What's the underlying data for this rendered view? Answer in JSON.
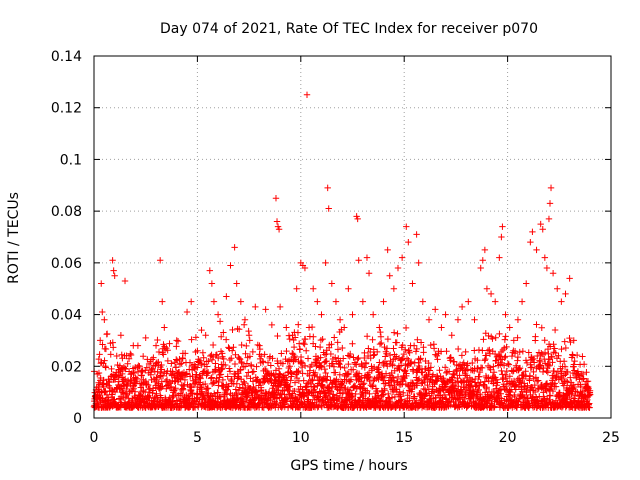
{
  "chart_data": {
    "type": "scatter",
    "title": "Day 074 of 2021, Rate Of TEC Index for receiver p070",
    "xlabel": "GPS time / hours",
    "ylabel": "ROTI / TECUs",
    "xlim": [
      0,
      25
    ],
    "ylim": [
      0,
      0.14
    ],
    "xticks": [
      0,
      5,
      10,
      15,
      20,
      25
    ],
    "xtick_labels": [
      "0",
      "5",
      "10",
      "15",
      "20",
      "25"
    ],
    "yticks": [
      0,
      0.02,
      0.04,
      0.06,
      0.08,
      0.1,
      0.12,
      0.14
    ],
    "ytick_labels": [
      "0",
      "0.02",
      "0.04",
      "0.06",
      "0.08",
      "0.1",
      "0.12",
      "0.14"
    ],
    "grid": true,
    "marker": "+",
    "color": "#ff0000",
    "series": [
      {
        "name": "ROTI",
        "points": [
          [
            0.1,
            0.008
          ],
          [
            0.2,
            0.012
          ],
          [
            0.3,
            0.03
          ],
          [
            0.35,
            0.052
          ],
          [
            0.4,
            0.041
          ],
          [
            0.5,
            0.038
          ],
          [
            0.55,
            0.02
          ],
          [
            0.7,
            0.015
          ],
          [
            0.9,
            0.061
          ],
          [
            0.95,
            0.057
          ],
          [
            1.0,
            0.055
          ],
          [
            1.1,
            0.024
          ],
          [
            1.3,
            0.032
          ],
          [
            1.5,
            0.053
          ],
          [
            1.7,
            0.018
          ],
          [
            1.9,
            0.028
          ],
          [
            2.2,
            0.02
          ],
          [
            2.5,
            0.031
          ],
          [
            2.8,
            0.019
          ],
          [
            3.0,
            0.028
          ],
          [
            3.2,
            0.061
          ],
          [
            3.3,
            0.045
          ],
          [
            3.4,
            0.035
          ],
          [
            3.5,
            0.027
          ],
          [
            3.8,
            0.018
          ],
          [
            4.0,
            0.03
          ],
          [
            4.3,
            0.025
          ],
          [
            4.5,
            0.041
          ],
          [
            4.7,
            0.045
          ],
          [
            4.9,
            0.02
          ],
          [
            5.2,
            0.034
          ],
          [
            5.4,
            0.032
          ],
          [
            5.6,
            0.057
          ],
          [
            5.7,
            0.052
          ],
          [
            5.8,
            0.045
          ],
          [
            6.0,
            0.04
          ],
          [
            6.2,
            0.025
          ],
          [
            6.4,
            0.047
          ],
          [
            6.6,
            0.059
          ],
          [
            6.8,
            0.066
          ],
          [
            6.9,
            0.052
          ],
          [
            7.1,
            0.045
          ],
          [
            7.3,
            0.038
          ],
          [
            7.5,
            0.032
          ],
          [
            7.8,
            0.043
          ],
          [
            8.0,
            0.028
          ],
          [
            8.3,
            0.042
          ],
          [
            8.6,
            0.036
          ],
          [
            8.8,
            0.085
          ],
          [
            8.85,
            0.076
          ],
          [
            8.9,
            0.074
          ],
          [
            8.95,
            0.073
          ],
          [
            9.0,
            0.043
          ],
          [
            9.3,
            0.035
          ],
          [
            9.6,
            0.032
          ],
          [
            9.8,
            0.05
          ],
          [
            10.0,
            0.06
          ],
          [
            10.1,
            0.059
          ],
          [
            10.2,
            0.058
          ],
          [
            10.3,
            0.125
          ],
          [
            10.4,
            0.035
          ],
          [
            10.6,
            0.05
          ],
          [
            10.8,
            0.045
          ],
          [
            11.0,
            0.04
          ],
          [
            11.2,
            0.06
          ],
          [
            11.3,
            0.089
          ],
          [
            11.35,
            0.081
          ],
          [
            11.5,
            0.052
          ],
          [
            11.7,
            0.045
          ],
          [
            11.9,
            0.038
          ],
          [
            12.1,
            0.035
          ],
          [
            12.3,
            0.05
          ],
          [
            12.5,
            0.04
          ],
          [
            12.7,
            0.078
          ],
          [
            12.75,
            0.077
          ],
          [
            12.8,
            0.061
          ],
          [
            13.0,
            0.045
          ],
          [
            13.2,
            0.062
          ],
          [
            13.3,
            0.056
          ],
          [
            13.5,
            0.04
          ],
          [
            13.8,
            0.035
          ],
          [
            14.0,
            0.045
          ],
          [
            14.2,
            0.065
          ],
          [
            14.3,
            0.055
          ],
          [
            14.5,
            0.05
          ],
          [
            14.7,
            0.058
          ],
          [
            14.9,
            0.062
          ],
          [
            15.1,
            0.074
          ],
          [
            15.2,
            0.068
          ],
          [
            15.4,
            0.052
          ],
          [
            15.6,
            0.071
          ],
          [
            15.7,
            0.06
          ],
          [
            15.9,
            0.045
          ],
          [
            16.2,
            0.038
          ],
          [
            16.5,
            0.042
          ],
          [
            16.8,
            0.035
          ],
          [
            17.0,
            0.04
          ],
          [
            17.3,
            0.032
          ],
          [
            17.6,
            0.038
          ],
          [
            17.8,
            0.043
          ],
          [
            18.1,
            0.045
          ],
          [
            18.4,
            0.038
          ],
          [
            18.7,
            0.058
          ],
          [
            18.8,
            0.061
          ],
          [
            18.9,
            0.065
          ],
          [
            19.0,
            0.05
          ],
          [
            19.2,
            0.048
          ],
          [
            19.4,
            0.045
          ],
          [
            19.6,
            0.062
          ],
          [
            19.7,
            0.07
          ],
          [
            19.75,
            0.074
          ],
          [
            19.9,
            0.04
          ],
          [
            20.1,
            0.035
          ],
          [
            20.3,
            0.03
          ],
          [
            20.5,
            0.038
          ],
          [
            20.7,
            0.045
          ],
          [
            20.9,
            0.052
          ],
          [
            21.1,
            0.068
          ],
          [
            21.2,
            0.072
          ],
          [
            21.4,
            0.065
          ],
          [
            21.6,
            0.075
          ],
          [
            21.7,
            0.073
          ],
          [
            21.8,
            0.062
          ],
          [
            21.9,
            0.058
          ],
          [
            22.0,
            0.077
          ],
          [
            22.05,
            0.083
          ],
          [
            22.1,
            0.089
          ],
          [
            22.2,
            0.056
          ],
          [
            22.4,
            0.05
          ],
          [
            22.6,
            0.045
          ],
          [
            22.8,
            0.048
          ],
          [
            23.0,
            0.054
          ],
          [
            23.2,
            0.03
          ],
          [
            23.4,
            0.018
          ],
          [
            23.6,
            0.015
          ],
          [
            23.9,
            0.012
          ]
        ]
      }
    ],
    "dense_band": {
      "description_values": "bulk of ROTI samples between 0.005 and 0.035 TECUs across 0-24 h",
      "baseline_min": 0.004,
      "baseline_typical": 0.012,
      "envelope_peaks": [
        [
          0.0,
          0.02
        ],
        [
          0.5,
          0.035
        ],
        [
          1.0,
          0.03
        ],
        [
          2.0,
          0.025
        ],
        [
          3.0,
          0.03
        ],
        [
          4.0,
          0.028
        ],
        [
          5.0,
          0.03
        ],
        [
          6.0,
          0.035
        ],
        [
          7.0,
          0.035
        ],
        [
          8.0,
          0.03
        ],
        [
          9.0,
          0.028
        ],
        [
          10.0,
          0.035
        ],
        [
          11.0,
          0.032
        ],
        [
          12.0,
          0.03
        ],
        [
          13.0,
          0.03
        ],
        [
          14.0,
          0.03
        ],
        [
          15.0,
          0.035
        ],
        [
          16.0,
          0.03
        ],
        [
          17.0,
          0.028
        ],
        [
          18.0,
          0.03
        ],
        [
          19.0,
          0.035
        ],
        [
          20.0,
          0.03
        ],
        [
          21.0,
          0.03
        ],
        [
          22.0,
          0.035
        ],
        [
          23.0,
          0.03
        ],
        [
          24.0,
          0.02
        ]
      ]
    }
  }
}
